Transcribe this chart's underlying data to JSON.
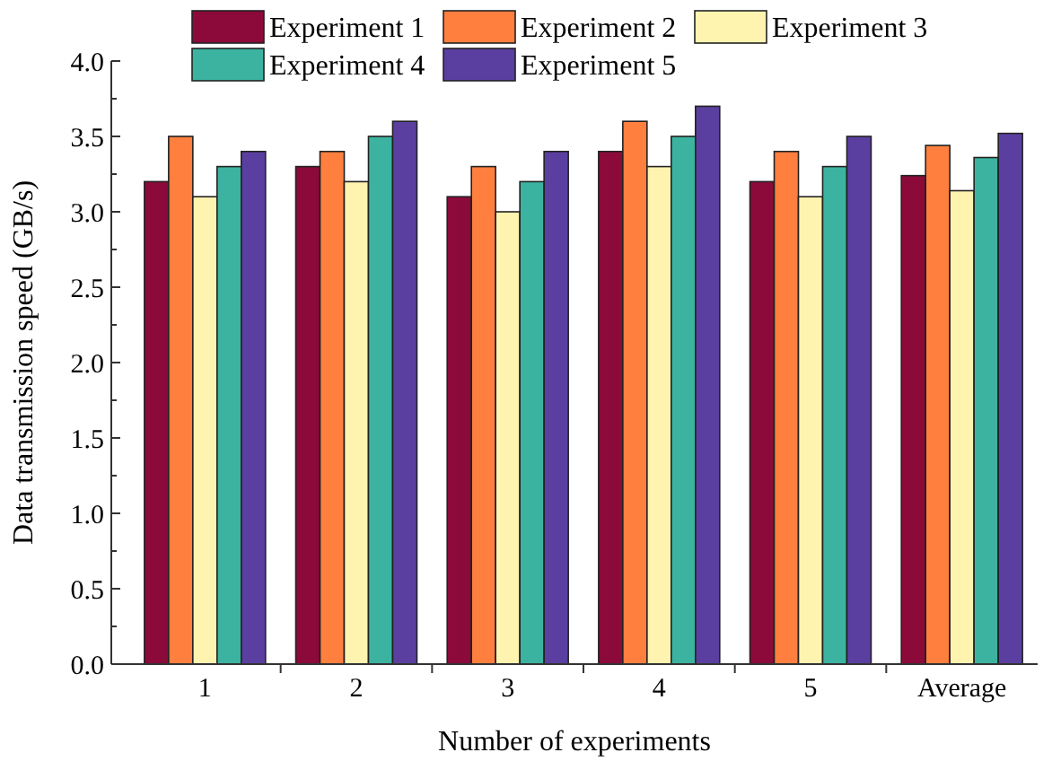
{
  "chart_data": {
    "type": "bar",
    "xlabel": "Number of experiments",
    "ylabel": "Data transmission speed (GB/s)",
    "categories": [
      "1",
      "2",
      "3",
      "4",
      "5",
      "Average"
    ],
    "series": [
      {
        "name": "Experiment 1",
        "color": "#8b0a3a",
        "values": [
          3.2,
          3.3,
          3.1,
          3.4,
          3.2,
          3.24
        ]
      },
      {
        "name": "Experiment 2",
        "color": "#ff7f3f",
        "values": [
          3.5,
          3.4,
          3.3,
          3.6,
          3.4,
          3.44
        ]
      },
      {
        "name": "Experiment 3",
        "color": "#fff3b0",
        "values": [
          3.1,
          3.2,
          3.0,
          3.3,
          3.1,
          3.14
        ]
      },
      {
        "name": "Experiment 4",
        "color": "#3cb3a0",
        "values": [
          3.3,
          3.5,
          3.2,
          3.5,
          3.3,
          3.36
        ]
      },
      {
        "name": "Experiment 5",
        "color": "#5a3fa0",
        "values": [
          3.4,
          3.6,
          3.4,
          3.7,
          3.5,
          3.52
        ]
      }
    ],
    "ylim": [
      0,
      4
    ],
    "yticks": [
      {
        "value": 0,
        "label": "0.0"
      },
      {
        "value": 0.5,
        "label": "0.5"
      },
      {
        "value": 1,
        "label": "1.0"
      },
      {
        "value": 1.5,
        "label": "1.5"
      },
      {
        "value": 2,
        "label": "2.0"
      },
      {
        "value": 2.5,
        "label": "2.5"
      },
      {
        "value": 3,
        "label": "3.0"
      },
      {
        "value": 3.5,
        "label": "3.5"
      },
      {
        "value": 4,
        "label": "4.0"
      }
    ],
    "grid": false,
    "legend": "top"
  }
}
